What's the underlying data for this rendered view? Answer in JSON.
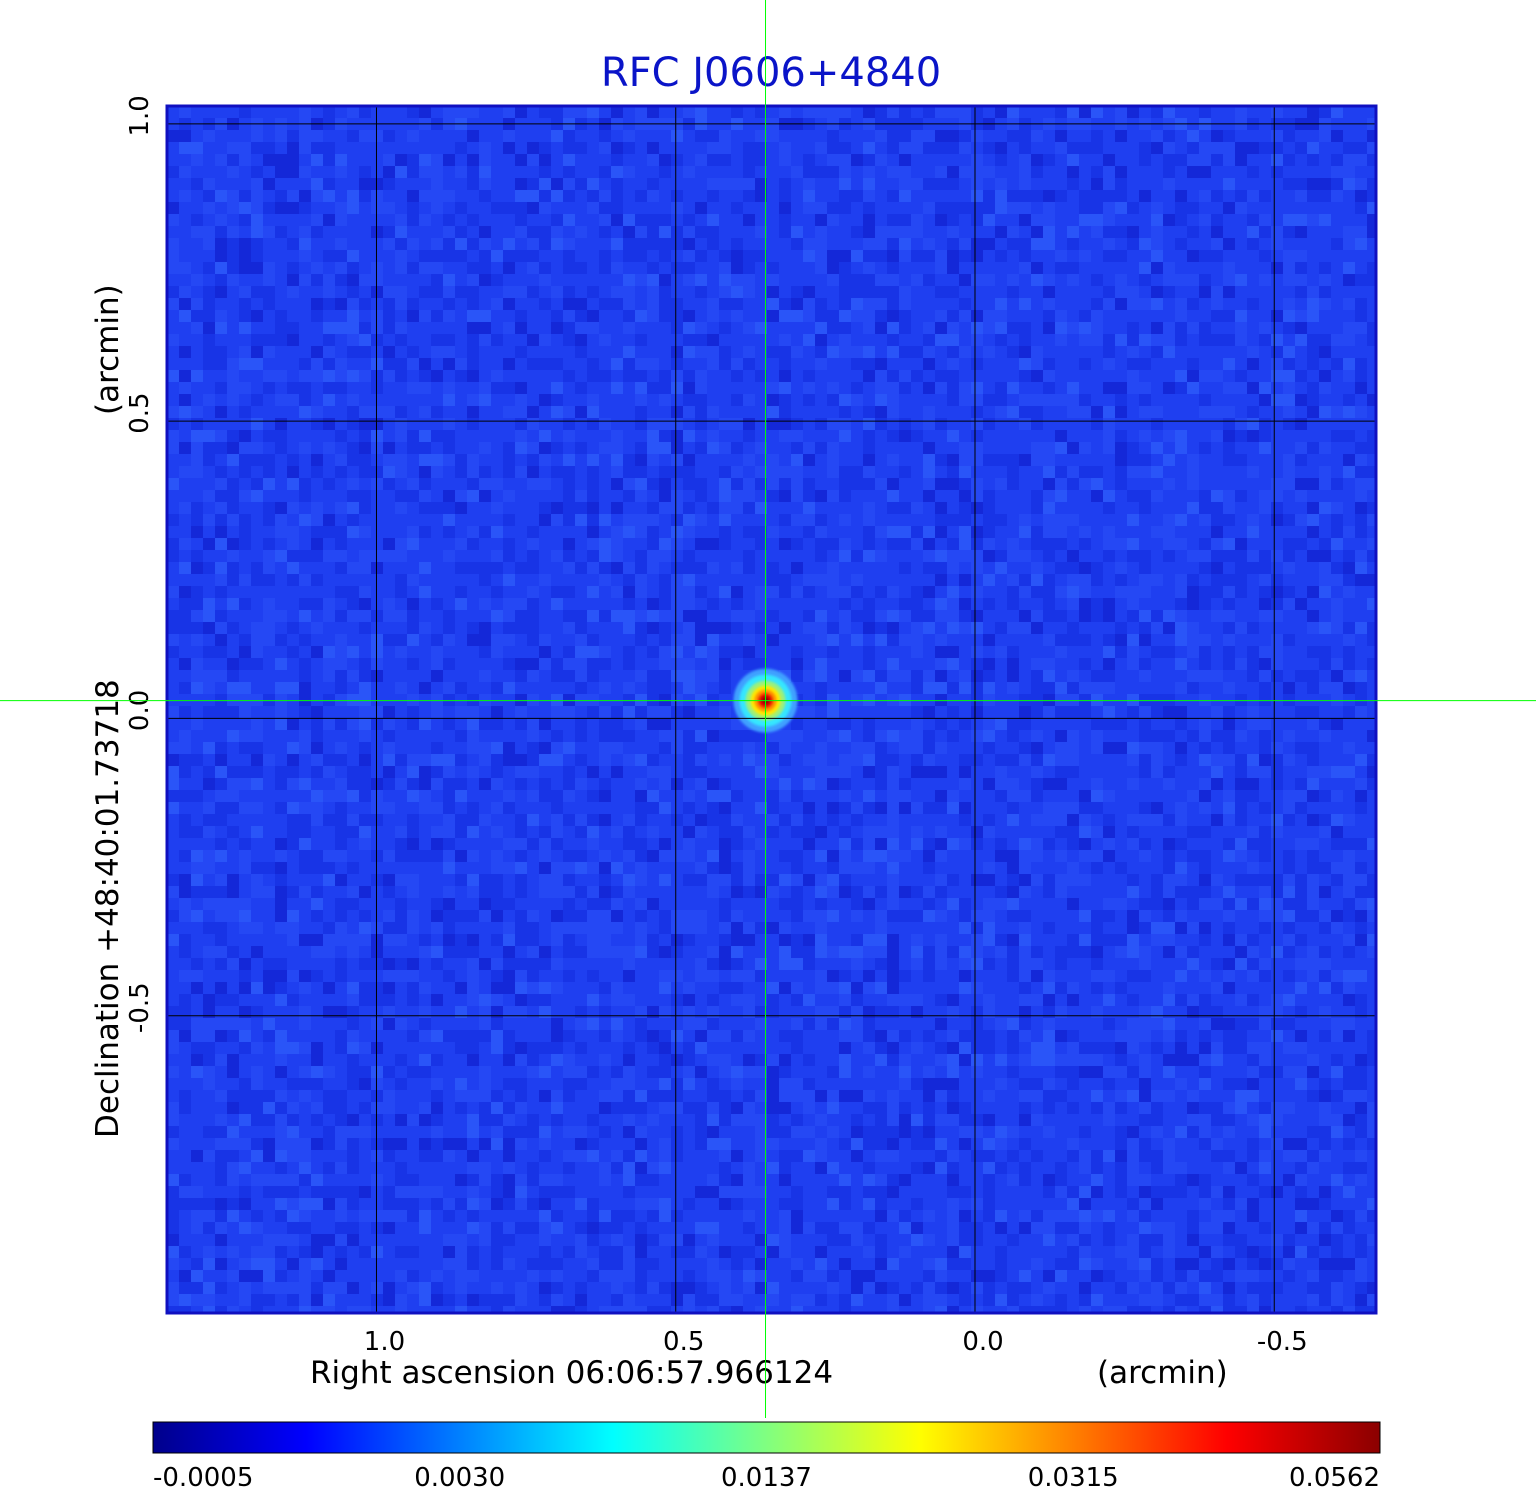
{
  "chart_data": {
    "type": "heatmap",
    "title": "RFC J0606+4840",
    "xlabel": "Right ascension  06:06:57.966124",
    "xunit": "(arcmin)",
    "ylabel": "Declination  +48:40:01.73718",
    "yunit": "(arcmin)",
    "x_ticks": [
      {
        "value": 1.0,
        "label": "1.0"
      },
      {
        "value": 0.5,
        "label": "0.5"
      },
      {
        "value": 0.0,
        "label": "0.0"
      },
      {
        "value": -0.5,
        "label": "-0.5"
      }
    ],
    "y_ticks": [
      {
        "value": 1.0,
        "label": "1.0"
      },
      {
        "value": 0.5,
        "label": "0.5"
      },
      {
        "value": 0.0,
        "label": "0.0"
      },
      {
        "value": -0.5,
        "label": "-0.5"
      }
    ],
    "xlim": [
      1.35,
      -0.67
    ],
    "ylim": [
      -1.0,
      1.03
    ],
    "grid": true,
    "crosshair": {
      "x": 0.35,
      "y": 0.03
    },
    "source": {
      "x": 0.35,
      "y": 0.03,
      "peak": 0.0562
    },
    "colorbar": {
      "ticks": [
        "-0.0005",
        "0.0030",
        "0.0137",
        "0.0315",
        "0.0562"
      ],
      "colormap": [
        "#00008b",
        "#0000ff",
        "#0080ff",
        "#00ffff",
        "#80ff80",
        "#ffff00",
        "#ff8000",
        "#ff0000",
        "#8b0000"
      ]
    },
    "colors": {
      "background_field": "#1f3ff0",
      "title": "#0a14c8",
      "frame": "#1010c0",
      "crosshair": "#00ff00"
    }
  }
}
